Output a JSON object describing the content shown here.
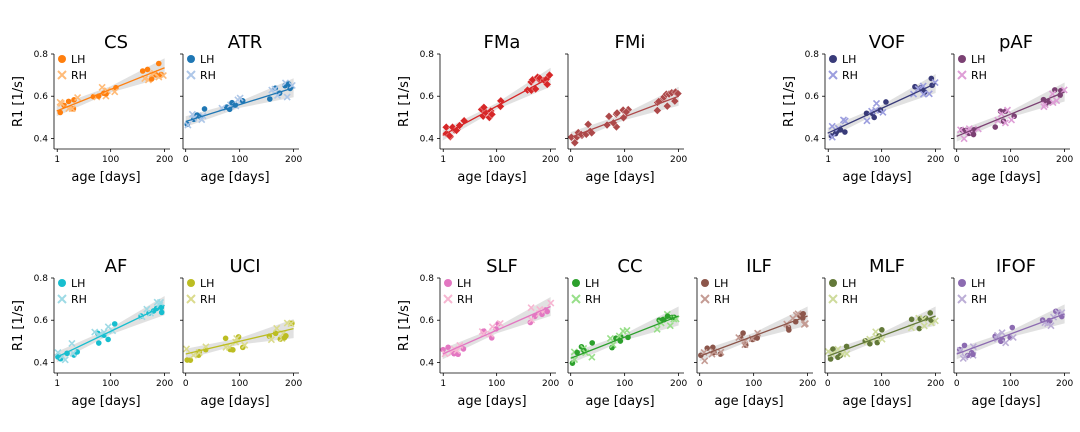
{
  "chart_data": {
    "type": "scatter",
    "xlabel": "age [days]",
    "ylabel": "R1 [1/s]",
    "xlim": [
      -5,
      210
    ],
    "ylim": [
      0.35,
      0.8
    ],
    "x_ticks": [
      1,
      100,
      200
    ],
    "x_tick_labels": [
      "1",
      "100",
      "200"
    ],
    "x_tick_labels_alt": [
      "0",
      "100",
      "200"
    ],
    "y_ticks": [
      0.4,
      0.6,
      0.8
    ],
    "y_tick_labels": [
      "0.4",
      "0.6",
      "0.8"
    ],
    "legend_labels": [
      "LH",
      "RH"
    ],
    "panels": [
      {
        "title": "CS",
        "c1": "#ff7f0e",
        "c2": "#ffbb78",
        "fit": [
          0.53,
          0.735
        ],
        "grid_row": 0,
        "grid_col": 0,
        "ylabel": true,
        "legend": true,
        "alt_x": false,
        "marker": "circle"
      },
      {
        "title": "ATR",
        "c1": "#1f77b4",
        "c2": "#aec7e8",
        "fit": [
          0.48,
          0.64
        ],
        "grid_row": 0,
        "grid_col": 1,
        "ylabel": false,
        "legend": true,
        "alt_x": true,
        "marker": "circle"
      },
      {
        "title": "FMa",
        "c1": "#d62728",
        "c2": "#d62728",
        "fit": [
          0.415,
          0.69
        ],
        "grid_row": 0,
        "grid_col": 3,
        "ylabel": true,
        "legend": false,
        "alt_x": false,
        "marker": "diamond"
      },
      {
        "title": "FMi",
        "c1": "#ad494a",
        "c2": "#ad494a",
        "fit": [
          0.405,
          0.6
        ],
        "grid_row": 0,
        "grid_col": 4,
        "ylabel": false,
        "legend": false,
        "alt_x": true,
        "marker": "diamond"
      },
      {
        "title": "VOF",
        "c1": "#393b79",
        "c2": "#9c9ede",
        "fit": [
          0.425,
          0.66
        ],
        "grid_row": 0,
        "grid_col": 6,
        "ylabel": true,
        "legend": true,
        "alt_x": false,
        "marker": "circle"
      },
      {
        "title": "pAF",
        "c1": "#7b4173",
        "c2": "#de9ed6",
        "fit": [
          0.41,
          0.62
        ],
        "grid_row": 0,
        "grid_col": 7,
        "ylabel": false,
        "legend": true,
        "alt_x": true,
        "marker": "circle"
      },
      {
        "title": "AF",
        "c1": "#17becf",
        "c2": "#9edae5",
        "fit": [
          0.425,
          0.67
        ],
        "grid_row": 1,
        "grid_col": 0,
        "ylabel": true,
        "legend": true,
        "alt_x": false,
        "marker": "circle"
      },
      {
        "title": "UCI",
        "c1": "#bcbd22",
        "c2": "#dbdb8d",
        "fit": [
          0.44,
          0.56
        ],
        "grid_row": 1,
        "grid_col": 1,
        "ylabel": false,
        "legend": true,
        "alt_x": true,
        "marker": "circle"
      },
      {
        "title": "SLF",
        "c1": "#e377c2",
        "c2": "#f7b6d2",
        "fit": [
          0.44,
          0.665
        ],
        "grid_row": 1,
        "grid_col": 3,
        "ylabel": true,
        "legend": true,
        "alt_x": false,
        "marker": "circle"
      },
      {
        "title": "CC",
        "c1": "#2ca02c",
        "c2": "#98df8a",
        "fit": [
          0.42,
          0.62
        ],
        "grid_row": 1,
        "grid_col": 4,
        "ylabel": false,
        "legend": true,
        "alt_x": true,
        "marker": "circle"
      },
      {
        "title": "ILF",
        "c1": "#8c564b",
        "c2": "#c49c94",
        "fit": [
          0.43,
          0.62
        ],
        "grid_row": 1,
        "grid_col": 5,
        "ylabel": false,
        "legend": true,
        "alt_x": true,
        "marker": "circle"
      },
      {
        "title": "MLF",
        "c1": "#637939",
        "c2": "#cedb9c",
        "fit": [
          0.43,
          0.62
        ],
        "grid_row": 1,
        "grid_col": 6,
        "ylabel": false,
        "legend": true,
        "alt_x": true,
        "marker": "circle"
      },
      {
        "title": "IFOF",
        "c1": "#8c6bb1",
        "c2": "#bcaed6",
        "fit": [
          0.44,
          0.63
        ],
        "grid_row": 1,
        "grid_col": 7,
        "ylabel": false,
        "legend": true,
        "alt_x": true,
        "marker": "circle"
      }
    ]
  },
  "colors": {
    "axis": "#000000",
    "ci_band": "#bdbdbd",
    "background": "#ffffff"
  }
}
